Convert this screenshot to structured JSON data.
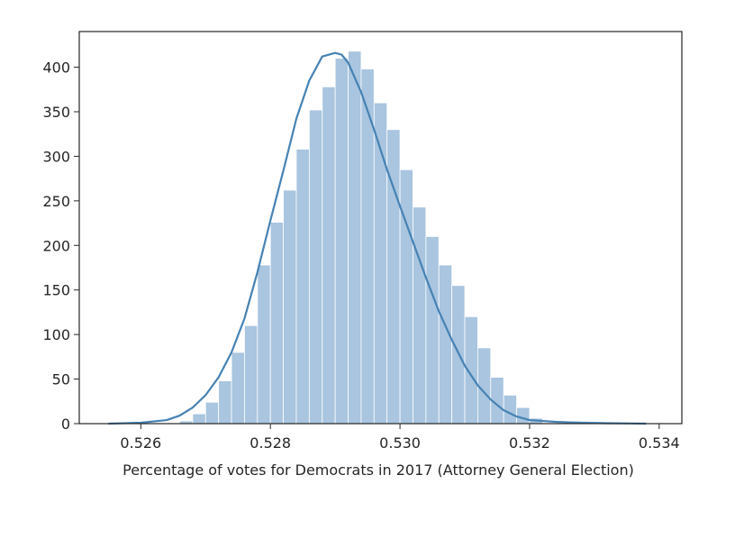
{
  "chart_data": {
    "type": "bar",
    "subtype": "histogram-with-kde",
    "title": "",
    "xlabel": "Percentage of votes for Democrats in 2017 (Attorney General Election)",
    "ylabel": "",
    "xlim": [
      0.52505,
      0.53435
    ],
    "ylim": [
      0,
      440
    ],
    "xticks": [
      0.526,
      0.528,
      0.53,
      0.532,
      0.534
    ],
    "xtick_labels": [
      "0.526",
      "0.528",
      "0.530",
      "0.532",
      "0.534"
    ],
    "yticks": [
      0,
      50,
      100,
      150,
      200,
      250,
      300,
      350,
      400
    ],
    "ytick_labels": [
      "0",
      "50",
      "100",
      "150",
      "200",
      "250",
      "300",
      "350",
      "400"
    ],
    "grid": false,
    "legend": "none",
    "colors": {
      "bars": "#a9c5df",
      "kde": "#4682b4",
      "axes": "#262626"
    },
    "histogram": {
      "bin_width": 0.0002,
      "bin_lefts": [
        0.5266,
        0.5268,
        0.527,
        0.5272,
        0.5274,
        0.5276,
        0.5278,
        0.528,
        0.5282,
        0.5284,
        0.5286,
        0.5288,
        0.529,
        0.5292,
        0.5294,
        0.5296,
        0.5298,
        0.53,
        0.5302,
        0.5304,
        0.5306,
        0.5308,
        0.531,
        0.5312,
        0.5314,
        0.5316,
        0.5318,
        0.532
      ],
      "counts": [
        3,
        11,
        24,
        48,
        80,
        110,
        178,
        226,
        262,
        308,
        352,
        378,
        410,
        418,
        398,
        360,
        330,
        285,
        243,
        210,
        178,
        155,
        120,
        85,
        52,
        32,
        18,
        6
      ]
    },
    "kde": {
      "x": [
        0.5255,
        0.526,
        0.5264,
        0.5266,
        0.5268,
        0.527,
        0.5272,
        0.5274,
        0.5276,
        0.5278,
        0.528,
        0.5282,
        0.5284,
        0.5286,
        0.5288,
        0.5289,
        0.529,
        0.5291,
        0.5292,
        0.5294,
        0.5296,
        0.5298,
        0.53,
        0.5302,
        0.5304,
        0.5306,
        0.5308,
        0.531,
        0.5312,
        0.5314,
        0.5316,
        0.5318,
        0.532,
        0.5324,
        0.5328,
        0.5332,
        0.5336,
        0.5338
      ],
      "y": [
        0,
        1,
        4,
        9,
        18,
        32,
        52,
        80,
        118,
        170,
        228,
        284,
        342,
        385,
        412,
        414,
        416,
        414,
        405,
        372,
        330,
        285,
        244,
        204,
        164,
        126,
        94,
        65,
        43,
        27,
        15,
        8,
        4,
        2,
        1,
        0.5,
        0.2,
        0
      ]
    }
  }
}
